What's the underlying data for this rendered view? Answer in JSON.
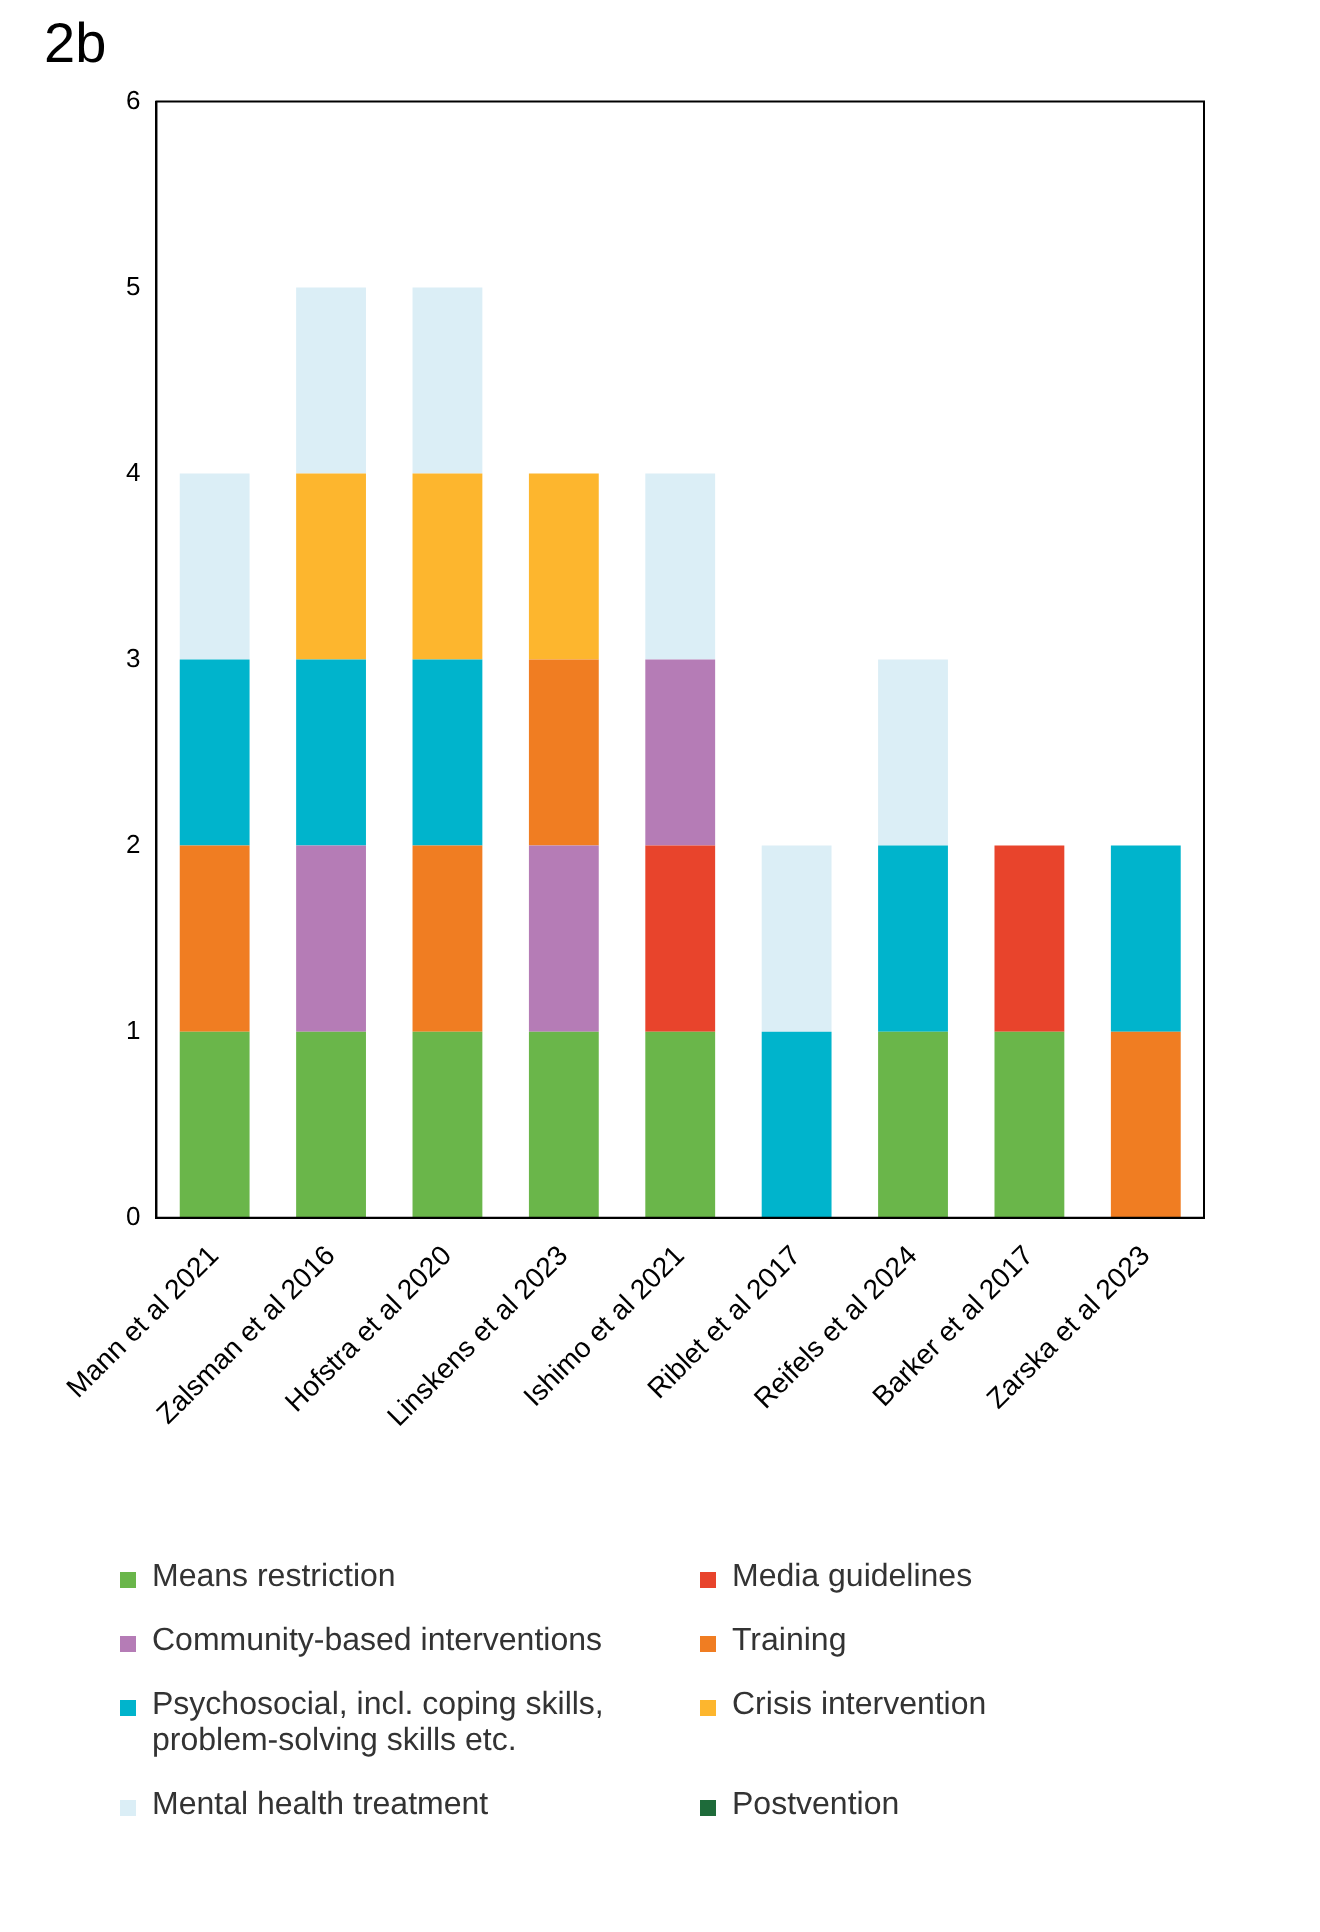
{
  "chart_data": {
    "type": "bar",
    "title": "2b",
    "stacked": true,
    "legend": "bottom",
    "grid": false,
    "categories": [
      "Mann et al 2021",
      "Zalsman et al 2016",
      "Hofstra et al 2020",
      "Linskens et al 2023",
      "Ishimo et al 2021",
      "Riblet et al 2017",
      "Reifels et al 2024",
      "Barker et al 2017",
      "Zarska et al 2023"
    ],
    "ylim": [
      0,
      6
    ],
    "yticks": [
      0,
      1,
      2,
      3,
      4,
      5,
      6
    ],
    "series": [
      {
        "name": "Means restriction",
        "color": "#6ab64a",
        "values": [
          1,
          1,
          1,
          1,
          1,
          0,
          1,
          1,
          0
        ]
      },
      {
        "name": "Media guidelines",
        "color": "#e8442c",
        "values": [
          0,
          0,
          0,
          0,
          1,
          0,
          0,
          1,
          0
        ]
      },
      {
        "name": "Community-based interventions",
        "color": "#b57cb6",
        "values": [
          0,
          1,
          0,
          1,
          1,
          0,
          0,
          0,
          0
        ]
      },
      {
        "name": "Training",
        "color": "#f07d22",
        "values": [
          1,
          0,
          1,
          1,
          0,
          0,
          0,
          0,
          1
        ]
      },
      {
        "name": "Psychosocial, incl. coping skills, problem-solving skills etc.",
        "color": "#00b4cc",
        "values": [
          1,
          1,
          1,
          0,
          0,
          1,
          1,
          0,
          1
        ]
      },
      {
        "name": "Crisis intervention",
        "color": "#fdb62e",
        "values": [
          0,
          1,
          1,
          1,
          0,
          0,
          0,
          0,
          0
        ]
      },
      {
        "name": "Mental health treatment",
        "color": "#dbeef6",
        "values": [
          1,
          1,
          1,
          0,
          1,
          1,
          1,
          0,
          0
        ]
      },
      {
        "name": "Postvention",
        "color": "#1e6b3a",
        "values": [
          0,
          0,
          0,
          0,
          0,
          0,
          0,
          0,
          0
        ]
      }
    ]
  }
}
